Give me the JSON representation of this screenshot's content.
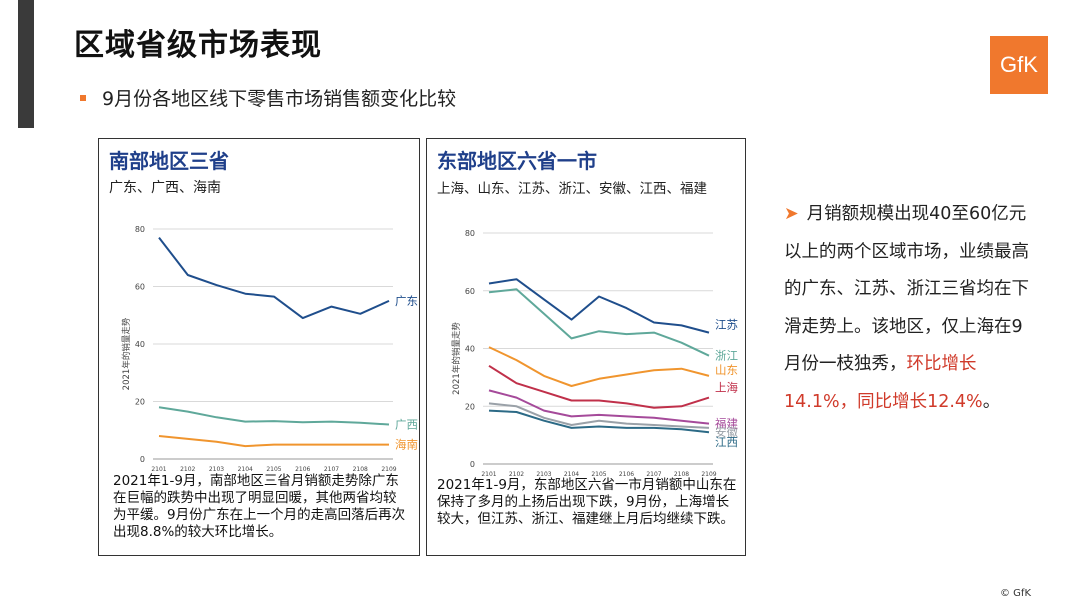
{
  "header": {
    "title": "区域省级市场表现",
    "subtitle": "9月份各地区线下零售市场销售额变化比较",
    "logo": "GfK"
  },
  "colors": {
    "accent": "#f0782d",
    "title_blue": "#1f3f8a",
    "highlight": "#d03a2a"
  },
  "panels": {
    "south": {
      "title": "南部地区三省",
      "provinces": "广东、广西、海南",
      "description": "2021年1-9月，南部地区三省月销额走势除广东在巨幅的跌势中出现了明显回暖，其他两省均较为平缓。9月份广东在上一个月的走高回落后再次出现8.8%的较大环比增长。"
    },
    "east": {
      "title": "东部地区六省一市",
      "provinces": "上海、山东、江苏、浙江、安徽、江西、福建",
      "description": "2021年1-9月，东部地区六省一市月销额中山东在保持了多月的上扬后出现下跌，9月份，上海增长较大，但江苏、浙江、福建继上月后均继续下跌。"
    }
  },
  "side_note": {
    "text_before": "月销额规模出现40至60亿元以上的两个区域市场，业绩最高的广东、江苏、浙江三省均在下滑走势上。该地区，仅上海在9月份一枝独秀，",
    "highlight": "环比增长14.1%，同比增长12.4%",
    "text_after": "。"
  },
  "copyright": "© GfK",
  "chart_data": [
    {
      "type": "line",
      "title": "",
      "ylabel": "2021年的销量走势",
      "xlabel": "",
      "categories": [
        "2101",
        "2102",
        "2103",
        "2104",
        "2105",
        "2106",
        "2107",
        "2108",
        "2109"
      ],
      "ylim": [
        0,
        80
      ],
      "yticks": [
        0,
        20,
        40,
        60,
        80
      ],
      "grid": true,
      "legend": "line-end labels",
      "series": [
        {
          "name": "广东",
          "color": "#1f4e8c",
          "values": [
            77,
            64,
            60.5,
            57.5,
            56.5,
            49,
            53,
            50.5,
            55
          ]
        },
        {
          "name": "广西",
          "color": "#5fa89a",
          "values": [
            18,
            16.5,
            14.5,
            13,
            13.2,
            12.8,
            13,
            12.6,
            12
          ]
        },
        {
          "name": "海南",
          "color": "#f0952e",
          "values": [
            8,
            7,
            6,
            4.5,
            5,
            5,
            5,
            5,
            5
          ]
        }
      ]
    },
    {
      "type": "line",
      "title": "",
      "ylabel": "2021年的销量走势",
      "xlabel": "",
      "categories": [
        "2101",
        "2102",
        "2103",
        "2104",
        "2105",
        "2106",
        "2107",
        "2108",
        "2109"
      ],
      "ylim": [
        0,
        80
      ],
      "yticks": [
        0,
        20,
        40,
        60,
        80
      ],
      "grid": true,
      "legend": "line-end labels",
      "series": [
        {
          "name": "江苏",
          "color": "#1f4e8c",
          "values": [
            62.5,
            64,
            57,
            50,
            58,
            54,
            49,
            48,
            45.5
          ]
        },
        {
          "name": "浙江",
          "color": "#5fa89a",
          "values": [
            59.5,
            60.5,
            52,
            43.5,
            46,
            45,
            45.5,
            42,
            37.5
          ]
        },
        {
          "name": "山东",
          "color": "#f0952e",
          "values": [
            40.5,
            36,
            30.5,
            27,
            29.5,
            31,
            32.5,
            33,
            30.5
          ]
        },
        {
          "name": "上海",
          "color": "#c0304a",
          "values": [
            34,
            28,
            25,
            22,
            22,
            21,
            19.5,
            20,
            23
          ]
        },
        {
          "name": "福建",
          "color": "#a54a9a",
          "values": [
            25.5,
            23,
            18.5,
            16.5,
            17,
            16.5,
            16,
            15,
            14
          ]
        },
        {
          "name": "安徽",
          "color": "#9aa1a8",
          "values": [
            21,
            20,
            16,
            13.5,
            15,
            14,
            13.5,
            13,
            12.5
          ]
        },
        {
          "name": "江西",
          "color": "#2c6a86",
          "values": [
            18.5,
            18,
            15,
            12.5,
            13,
            12.5,
            12.5,
            12,
            11
          ]
        }
      ]
    }
  ]
}
